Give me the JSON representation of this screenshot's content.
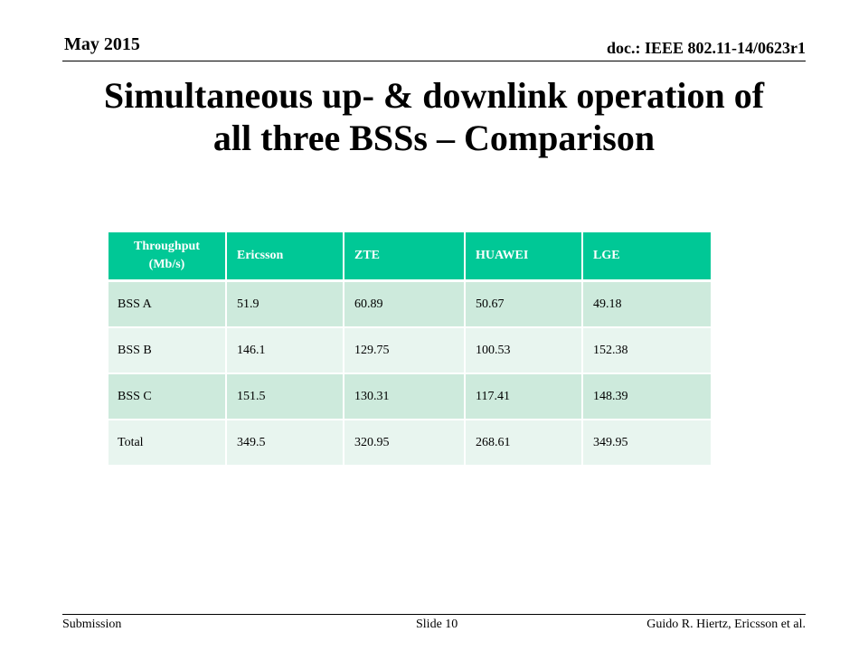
{
  "header": {
    "date": "May 2015",
    "doc_id": "doc.: IEEE 802.11-14/0623r1"
  },
  "title": {
    "line1": "Simultaneous up- & downlink operation of",
    "line2": "all three BSSs – Comparison"
  },
  "table": {
    "corner_line1": "Throughput",
    "corner_line2": "(Mb/s)",
    "columns": [
      "Ericsson",
      "ZTE",
      "HUAWEI",
      "LGE"
    ],
    "rows": [
      {
        "label": "BSS  A",
        "values": [
          "51.9",
          "60.89",
          "50.67",
          "49.18"
        ]
      },
      {
        "label": "BSS  B",
        "values": [
          "146.1",
          "129.75",
          "100.53",
          "152.38"
        ]
      },
      {
        "label": "BSS  C",
        "values": [
          "151.5",
          "130.31",
          "117.41",
          "148.39"
        ]
      },
      {
        "label": "Total",
        "values": [
          "349.5",
          "320.95",
          "268.61",
          "349.95"
        ]
      }
    ]
  },
  "footer": {
    "left": "Submission",
    "slide": "Slide 10",
    "author": "Guido R. Hiertz, Ericsson et al."
  },
  "colors": {
    "header_fill": "#00c896",
    "row_odd": "#cdeadc",
    "row_even": "#e8f5ef"
  }
}
